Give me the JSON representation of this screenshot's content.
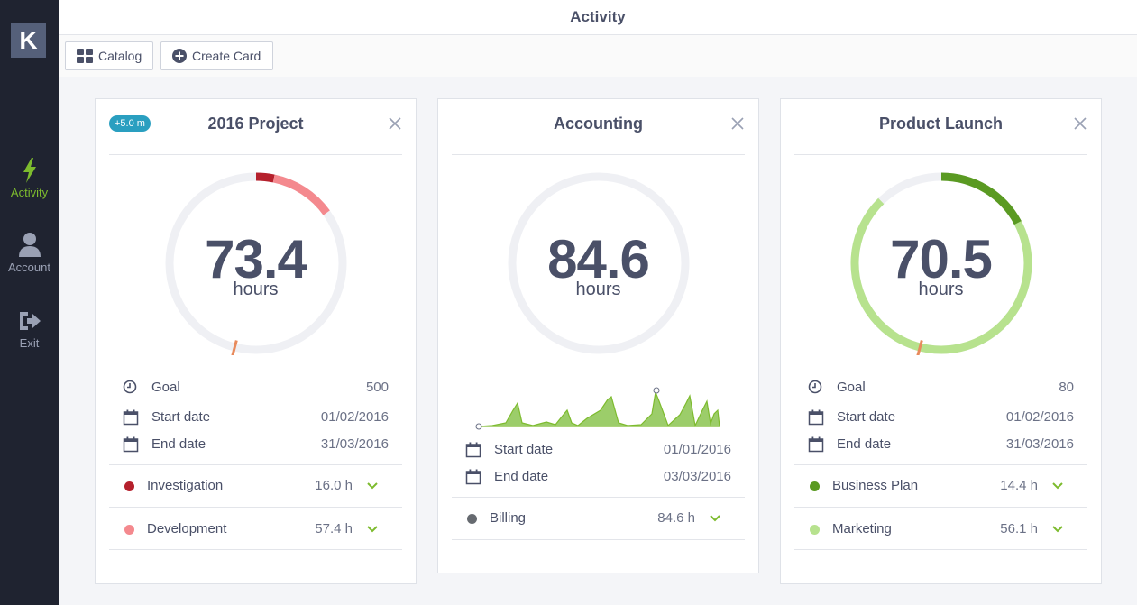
{
  "app": {
    "logo": "K",
    "title": "Activity"
  },
  "sidebar": {
    "items": [
      {
        "label": "Activity",
        "icon": "lightning-icon",
        "active": true
      },
      {
        "label": "Account",
        "icon": "user-icon",
        "active": false
      },
      {
        "label": "Exit",
        "icon": "exit-icon",
        "active": false
      }
    ]
  },
  "toolbar": {
    "catalog_label": "Catalog",
    "create_label": "Create Card"
  },
  "colors": {
    "accent_green": "#7dbb2e",
    "investigation": "#b5202c",
    "development": "#f4898e",
    "billing": "#666a70",
    "business_plan": "#5a9a22",
    "marketing": "#b7e28e",
    "goal_marker": "#e88a5c",
    "track": "#eff0f4",
    "badge": "#2a9fc0"
  },
  "cards": [
    {
      "title": "2016 Project",
      "badge": "+5.0 m",
      "value": "73.4",
      "unit": "hours",
      "fields": [
        {
          "label": "Goal",
          "value": "500",
          "icon": "clock-icon"
        },
        {
          "label": "Start date",
          "value": "01/02/2016",
          "icon": "calendar-icon"
        },
        {
          "label": "End date",
          "value": "31/03/2016",
          "icon": "calendar-icon"
        }
      ],
      "categories": [
        {
          "label": "Investigation",
          "value": "16.0 h",
          "color": "#b5202c"
        },
        {
          "label": "Development",
          "value": "57.4 h",
          "color": "#f4898e"
        }
      ]
    },
    {
      "title": "Accounting",
      "value": "84.6",
      "unit": "hours",
      "fields": [
        {
          "label": "Start date",
          "value": "01/01/2016",
          "icon": "calendar-icon"
        },
        {
          "label": "End date",
          "value": "03/03/2016",
          "icon": "calendar-icon"
        }
      ],
      "categories": [
        {
          "label": "Billing",
          "value": "84.6 h",
          "color": "#666a70"
        }
      ]
    },
    {
      "title": "Product Launch",
      "value": "70.5",
      "unit": "hours",
      "fields": [
        {
          "label": "Goal",
          "value": "80",
          "icon": "clock-icon"
        },
        {
          "label": "Start date",
          "value": "01/02/2016",
          "icon": "calendar-icon"
        },
        {
          "label": "End date",
          "value": "31/03/2016",
          "icon": "calendar-icon"
        }
      ],
      "categories": [
        {
          "label": "Business Plan",
          "value": "14.4 h",
          "color": "#5a9a22"
        },
        {
          "label": "Marketing",
          "value": "56.1 h",
          "color": "#b7e28e"
        }
      ]
    }
  ]
}
